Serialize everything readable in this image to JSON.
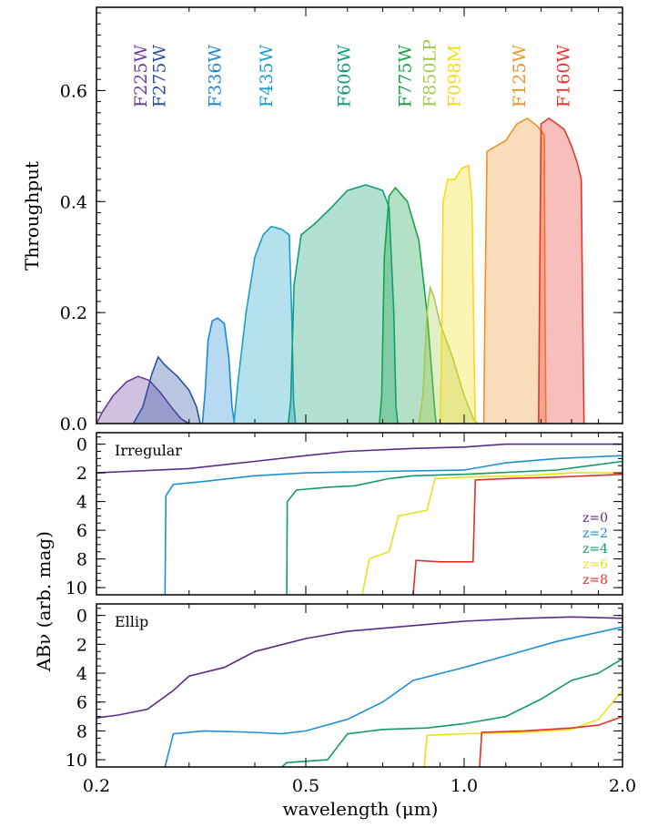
{
  "chart_data": [
    {
      "type": "area",
      "panel": "throughput",
      "ylabel": "Throughput",
      "xscale": "log",
      "xlim": [
        0.2,
        2.0
      ],
      "ylim": [
        0.0,
        0.75
      ],
      "yticks": [
        "0.0",
        "0.2",
        "0.4",
        "0.6"
      ],
      "ytick_values": [
        0.0,
        0.2,
        0.4,
        0.6
      ],
      "series": [
        {
          "name": "F225W",
          "color": "#6a3d9a",
          "points": [
            [
              0.2,
              0.0
            ],
            [
              0.205,
              0.02
            ],
            [
              0.215,
              0.05
            ],
            [
              0.228,
              0.075
            ],
            [
              0.24,
              0.085
            ],
            [
              0.252,
              0.078
            ],
            [
              0.265,
              0.055
            ],
            [
              0.28,
              0.025
            ],
            [
              0.29,
              0.008
            ],
            [
              0.3,
              0.0
            ]
          ]
        },
        {
          "name": "F275W",
          "color": "#2c4fa3",
          "points": [
            [
              0.235,
              0.0
            ],
            [
              0.245,
              0.03
            ],
            [
              0.255,
              0.09
            ],
            [
              0.262,
              0.12
            ],
            [
              0.27,
              0.105
            ],
            [
              0.285,
              0.085
            ],
            [
              0.3,
              0.06
            ],
            [
              0.31,
              0.03
            ],
            [
              0.315,
              0.0
            ]
          ]
        },
        {
          "name": "F336W",
          "color": "#1e88d8",
          "points": [
            [
              0.318,
              0.0
            ],
            [
              0.322,
              0.06
            ],
            [
              0.326,
              0.15
            ],
            [
              0.332,
              0.185
            ],
            [
              0.34,
              0.19
            ],
            [
              0.35,
              0.18
            ],
            [
              0.357,
              0.12
            ],
            [
              0.362,
              0.03
            ],
            [
              0.366,
              0.0
            ]
          ]
        },
        {
          "name": "F435W",
          "color": "#1aa0c8",
          "points": [
            [
              0.365,
              0.0
            ],
            [
              0.372,
              0.08
            ],
            [
              0.385,
              0.2
            ],
            [
              0.4,
              0.3
            ],
            [
              0.415,
              0.34
            ],
            [
              0.43,
              0.355
            ],
            [
              0.45,
              0.35
            ],
            [
              0.465,
              0.34
            ],
            [
              0.47,
              0.2
            ],
            [
              0.474,
              0.04
            ],
            [
              0.478,
              0.0
            ]
          ]
        },
        {
          "name": "F606W",
          "color": "#0f9e77",
          "points": [
            [
              0.463,
              0.0
            ],
            [
              0.468,
              0.04
            ],
            [
              0.475,
              0.25
            ],
            [
              0.49,
              0.34
            ],
            [
              0.52,
              0.36
            ],
            [
              0.56,
              0.39
            ],
            [
              0.6,
              0.42
            ],
            [
              0.65,
              0.43
            ],
            [
              0.7,
              0.42
            ],
            [
              0.72,
              0.39
            ],
            [
              0.735,
              0.2
            ],
            [
              0.742,
              0.03
            ],
            [
              0.748,
              0.0
            ]
          ]
        },
        {
          "name": "F775W",
          "color": "#16a34a",
          "points": [
            [
              0.69,
              0.0
            ],
            [
              0.697,
              0.05
            ],
            [
              0.705,
              0.3
            ],
            [
              0.72,
              0.41
            ],
            [
              0.74,
              0.425
            ],
            [
              0.78,
              0.4
            ],
            [
              0.82,
              0.33
            ],
            [
              0.85,
              0.2
            ],
            [
              0.87,
              0.08
            ],
            [
              0.88,
              0.02
            ],
            [
              0.885,
              0.0
            ]
          ]
        },
        {
          "name": "F850LP",
          "color": "#a6c94a",
          "points": [
            [
              0.82,
              0.0
            ],
            [
              0.835,
              0.05
            ],
            [
              0.85,
              0.2
            ],
            [
              0.862,
              0.245
            ],
            [
              0.875,
              0.23
            ],
            [
              0.9,
              0.18
            ],
            [
              0.95,
              0.12
            ],
            [
              1.0,
              0.05
            ],
            [
              1.04,
              0.01
            ],
            [
              1.06,
              0.0
            ]
          ]
        },
        {
          "name": "F098M",
          "color": "#f2dc1a",
          "points": [
            [
              0.9,
              0.0
            ],
            [
              0.905,
              0.1
            ],
            [
              0.912,
              0.4
            ],
            [
              0.93,
              0.44
            ],
            [
              0.96,
              0.44
            ],
            [
              0.99,
              0.46
            ],
            [
              1.02,
              0.465
            ],
            [
              1.035,
              0.4
            ],
            [
              1.045,
              0.1
            ],
            [
              1.05,
              0.0
            ]
          ]
        },
        {
          "name": "F125W",
          "color": "#f0922a",
          "points": [
            [
              1.09,
              0.0
            ],
            [
              1.095,
              0.2
            ],
            [
              1.105,
              0.49
            ],
            [
              1.15,
              0.5
            ],
            [
              1.2,
              0.51
            ],
            [
              1.26,
              0.54
            ],
            [
              1.32,
              0.55
            ],
            [
              1.38,
              0.535
            ],
            [
              1.42,
              0.52
            ],
            [
              1.425,
              0.2
            ],
            [
              1.43,
              0.0
            ]
          ]
        },
        {
          "name": "F160W",
          "color": "#e8352f",
          "points": [
            [
              1.385,
              0.0
            ],
            [
              1.39,
              0.2
            ],
            [
              1.4,
              0.54
            ],
            [
              1.45,
              0.55
            ],
            [
              1.5,
              0.54
            ],
            [
              1.55,
              0.53
            ],
            [
              1.6,
              0.5
            ],
            [
              1.64,
              0.47
            ],
            [
              1.67,
              0.44
            ],
            [
              1.68,
              0.2
            ],
            [
              1.69,
              0.0
            ]
          ]
        }
      ]
    },
    {
      "type": "line",
      "panel": "irregular",
      "title": "Irregular",
      "xscale": "log",
      "xlim": [
        0.2,
        2.0
      ],
      "ylim": [
        10.5,
        -0.8
      ],
      "yticks": [
        "0",
        "2",
        "4",
        "6",
        "8",
        "10"
      ],
      "ytick_values": [
        0,
        2,
        4,
        6,
        8,
        10
      ],
      "legend_position": "right",
      "series": [
        {
          "name": "z=0",
          "color": "#5b2a86",
          "points": [
            [
              0.2,
              2.0
            ],
            [
              0.3,
              1.7
            ],
            [
              0.4,
              1.2
            ],
            [
              0.5,
              0.8
            ],
            [
              0.6,
              0.5
            ],
            [
              0.8,
              0.3
            ],
            [
              1.0,
              0.2
            ],
            [
              1.2,
              0.0
            ],
            [
              1.5,
              0.0
            ],
            [
              2.0,
              0.0
            ]
          ]
        },
        {
          "name": "z=2",
          "color": "#1e90d0",
          "points": [
            [
              0.27,
              10.5
            ],
            [
              0.271,
              3.6
            ],
            [
              0.28,
              2.8
            ],
            [
              0.32,
              2.6
            ],
            [
              0.4,
              2.2
            ],
            [
              0.5,
              2.0
            ],
            [
              0.7,
              1.9
            ],
            [
              1.0,
              1.8
            ],
            [
              1.2,
              1.3
            ],
            [
              1.5,
              1.0
            ],
            [
              2.0,
              0.8
            ]
          ]
        },
        {
          "name": "z=4",
          "color": "#149a6a",
          "points": [
            [
              0.46,
              10.5
            ],
            [
              0.461,
              4.0
            ],
            [
              0.48,
              3.2
            ],
            [
              0.55,
              3.0
            ],
            [
              0.62,
              2.9
            ],
            [
              0.72,
              2.4
            ],
            [
              0.8,
              2.2
            ],
            [
              1.0,
              2.1
            ],
            [
              1.5,
              1.8
            ],
            [
              2.0,
              1.2
            ]
          ]
        },
        {
          "name": "z=6",
          "color": "#e8e21a",
          "points": [
            [
              0.64,
              10.5
            ],
            [
              0.66,
              8.0
            ],
            [
              0.72,
              7.5
            ],
            [
              0.75,
              5.0
            ],
            [
              0.85,
              4.6
            ],
            [
              0.88,
              2.4
            ],
            [
              1.0,
              2.3
            ],
            [
              1.3,
              2.2
            ],
            [
              1.6,
              2.0
            ],
            [
              2.0,
              2.0
            ]
          ]
        },
        {
          "name": "z=8",
          "color": "#e0302a",
          "points": [
            [
              0.8,
              10.5
            ],
            [
              0.81,
              8.1
            ],
            [
              0.9,
              8.2
            ],
            [
              1.04,
              8.2
            ],
            [
              1.05,
              2.5
            ],
            [
              1.2,
              2.4
            ],
            [
              1.5,
              2.3
            ],
            [
              2.0,
              2.1
            ]
          ]
        }
      ]
    },
    {
      "type": "line",
      "panel": "ellip",
      "title": "Ellip",
      "ylabel": "ABν (arb. mag)",
      "xlabel": "wavelength (μm)",
      "xscale": "log",
      "xlim": [
        0.2,
        2.0
      ],
      "ylim": [
        10.5,
        -0.8
      ],
      "yticks": [
        "0",
        "2",
        "4",
        "6",
        "8",
        "10"
      ],
      "ytick_values": [
        0,
        2,
        4,
        6,
        8,
        10
      ],
      "xticks": [
        "0.2",
        "0.5",
        "1.0",
        "2.0"
      ],
      "xtick_values": [
        0.2,
        0.5,
        1.0,
        2.0
      ],
      "series": [
        {
          "name": "z=0",
          "color": "#5b2a86",
          "points": [
            [
              0.2,
              7.1
            ],
            [
              0.22,
              6.9
            ],
            [
              0.25,
              6.5
            ],
            [
              0.28,
              5.2
            ],
            [
              0.3,
              4.2
            ],
            [
              0.35,
              3.6
            ],
            [
              0.4,
              2.5
            ],
            [
              0.5,
              1.6
            ],
            [
              0.6,
              1.1
            ],
            [
              0.8,
              0.7
            ],
            [
              1.0,
              0.4
            ],
            [
              1.3,
              0.2
            ],
            [
              1.6,
              0.1
            ],
            [
              2.0,
              0.2
            ]
          ]
        },
        {
          "name": "z=2",
          "color": "#1e90d0",
          "points": [
            [
              0.27,
              10.5
            ],
            [
              0.28,
              8.2
            ],
            [
              0.32,
              8.0
            ],
            [
              0.4,
              8.1
            ],
            [
              0.45,
              8.2
            ],
            [
              0.5,
              8.0
            ],
            [
              0.6,
              7.2
            ],
            [
              0.7,
              6.0
            ],
            [
              0.8,
              4.5
            ],
            [
              1.0,
              3.6
            ],
            [
              1.2,
              2.8
            ],
            [
              1.5,
              1.8
            ],
            [
              2.0,
              0.8
            ]
          ]
        },
        {
          "name": "z=4",
          "color": "#149a6a",
          "points": [
            [
              0.45,
              10.5
            ],
            [
              0.46,
              10.2
            ],
            [
              0.55,
              10.0
            ],
            [
              0.6,
              8.2
            ],
            [
              0.7,
              7.9
            ],
            [
              0.85,
              7.8
            ],
            [
              1.0,
              7.5
            ],
            [
              1.2,
              7.0
            ],
            [
              1.4,
              5.8
            ],
            [
              1.6,
              4.5
            ],
            [
              1.8,
              4.0
            ],
            [
              2.0,
              3.0
            ]
          ]
        },
        {
          "name": "z=6",
          "color": "#e8e21a",
          "points": [
            [
              0.84,
              10.5
            ],
            [
              0.85,
              8.3
            ],
            [
              1.0,
              8.2
            ],
            [
              1.3,
              8.1
            ],
            [
              1.6,
              7.9
            ],
            [
              1.8,
              7.2
            ],
            [
              2.0,
              5.2
            ]
          ]
        },
        {
          "name": "z=8",
          "color": "#e0302a",
          "points": [
            [
              1.07,
              10.5
            ],
            [
              1.08,
              8.1
            ],
            [
              1.3,
              8.0
            ],
            [
              1.6,
              7.8
            ],
            [
              1.8,
              7.6
            ],
            [
              2.0,
              7.0
            ]
          ]
        }
      ]
    }
  ]
}
